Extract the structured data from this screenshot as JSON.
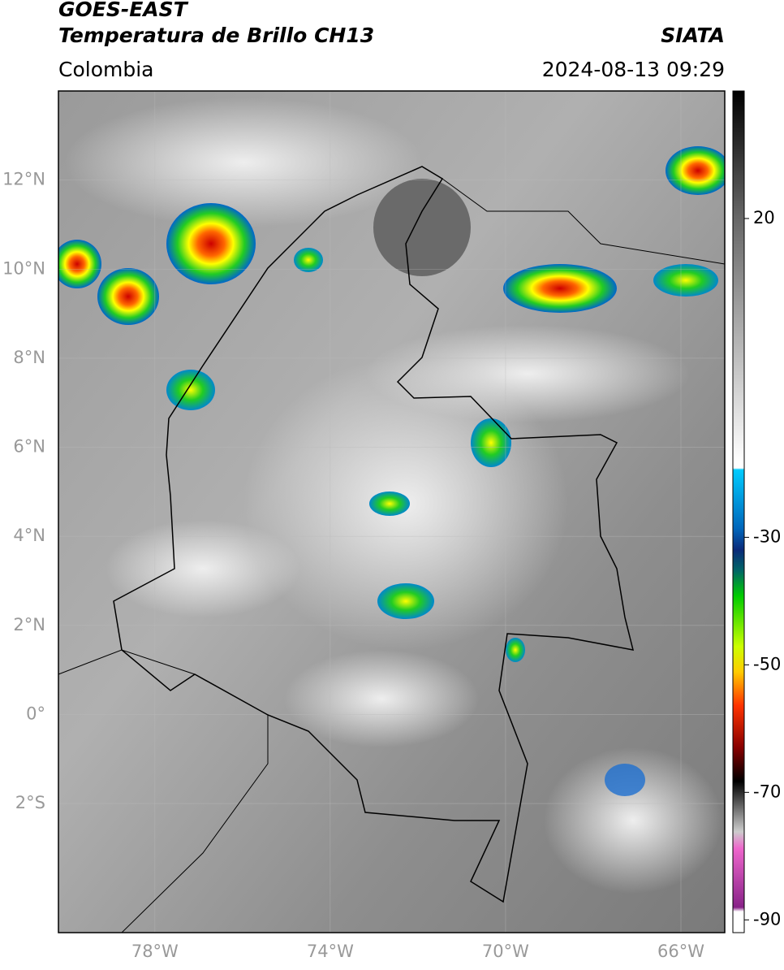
{
  "header": {
    "title": "GOES-EAST",
    "subtitle": "Temperatura de Brillo CH13",
    "source": "SIATA",
    "region": "Colombia",
    "datetime": "2024-08-13 09:29"
  },
  "map": {
    "lonlim": [
      -80.2,
      -65
    ],
    "latlim": [
      -4.9,
      14.0
    ],
    "lon_ticks": [
      {
        "value": -78,
        "label": "78°W"
      },
      {
        "value": -74,
        "label": "74°W"
      },
      {
        "value": -70,
        "label": "70°W"
      },
      {
        "value": -66,
        "label": "66°W"
      }
    ],
    "lat_ticks": [
      {
        "value": 12,
        "label": "12°N"
      },
      {
        "value": 10,
        "label": "10°N"
      },
      {
        "value": 8,
        "label": "8°N"
      },
      {
        "value": 6,
        "label": "6°N"
      },
      {
        "value": 4,
        "label": "4°N"
      },
      {
        "value": 2,
        "label": "2°N"
      },
      {
        "value": 0,
        "label": "0°"
      },
      {
        "value": -2,
        "label": "2°S"
      }
    ]
  },
  "colorbar": {
    "lim": [
      -92,
      40
    ],
    "ticks": [
      20,
      -30,
      -50,
      -70,
      -90
    ]
  }
}
